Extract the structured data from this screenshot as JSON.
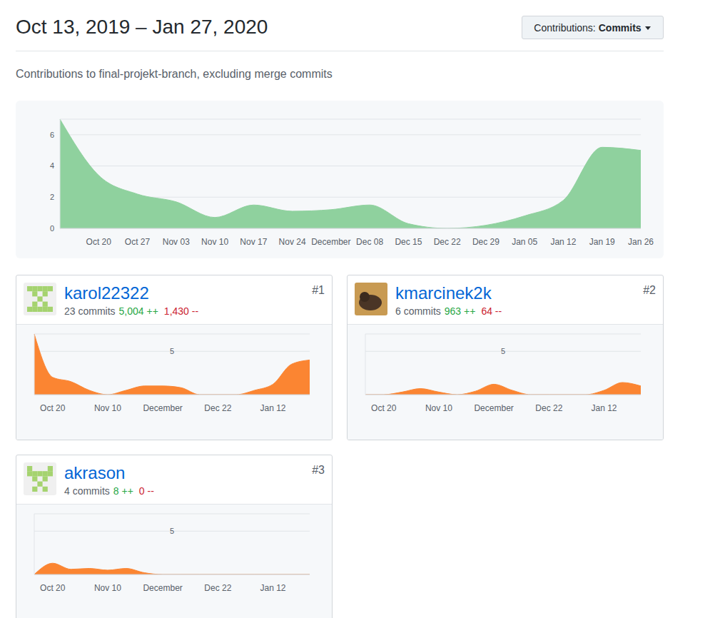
{
  "page": {
    "title": "Oct 13, 2019 – Jan 27, 2020",
    "menu_label": "Contributions:",
    "menu_value": "Commits",
    "subtitle": "Contributions to final-projekt-branch, excluding merge commits"
  },
  "chart_data": [
    {
      "type": "area",
      "categories": [
        null,
        "Oct 20",
        "Oct 27",
        "Nov 03",
        "Nov 10",
        "Nov 17",
        "Nov 24",
        "December",
        "Dec 08",
        "Dec 15",
        "Dec 22",
        "Dec 29",
        "Jan 05",
        "Jan 12",
        "Jan 19",
        "Jan 26"
      ],
      "values": [
        7,
        3.4,
        2.2,
        1.7,
        0.7,
        1.5,
        1.1,
        1.2,
        1.5,
        0.3,
        0,
        0.2,
        0.8,
        1.8,
        5.2,
        5
      ],
      "color": "#8fd19e",
      "ylim": [
        0,
        7
      ],
      "yticks": [
        0,
        2,
        4,
        6
      ],
      "grid": true
    },
    {
      "type": "area",
      "title": "karol22322",
      "rank": "#1",
      "commits": "23 commits",
      "additions": "5,004 ++",
      "deletions": "1,430 --",
      "categories": [
        null,
        "Oct 20",
        null,
        null,
        "Nov 10",
        null,
        null,
        "December",
        null,
        null,
        "Dec 22",
        null,
        null,
        "Jan 12",
        null,
        null
      ],
      "values": [
        7,
        2,
        1.5,
        0.5,
        0,
        0.5,
        1,
        1,
        0.8,
        0,
        0,
        0,
        0.5,
        1.2,
        3.5,
        4
      ],
      "color": "#fb8532",
      "ylim": [
        0,
        7
      ],
      "yticks": [
        5
      ],
      "grid": true
    },
    {
      "type": "area",
      "title": "kmarcinek2k",
      "rank": "#2",
      "commits": "6 commits",
      "additions": "963 ++",
      "deletions": "64 --",
      "categories": [
        null,
        "Oct 20",
        null,
        null,
        "Nov 10",
        null,
        null,
        "December",
        null,
        null,
        "Dec 22",
        null,
        null,
        "Jan 12",
        null,
        null
      ],
      "values": [
        0,
        0,
        0.3,
        0.7,
        0.3,
        0,
        0.4,
        1.2,
        0.5,
        0,
        0,
        0,
        0,
        0.5,
        1.4,
        1
      ],
      "color": "#fb8532",
      "ylim": [
        0,
        7
      ],
      "yticks": [
        5
      ],
      "grid": true
    },
    {
      "type": "area",
      "title": "akrason",
      "rank": "#3",
      "commits": "4 commits",
      "additions": "8 ++",
      "deletions": "0 --",
      "categories": [
        null,
        "Oct 20",
        null,
        null,
        "Nov 10",
        null,
        null,
        "December",
        null,
        null,
        "Dec 22",
        null,
        null,
        "Jan 12",
        null,
        null
      ],
      "values": [
        0,
        1.3,
        0.6,
        0.7,
        0.5,
        0.7,
        0.2,
        0,
        0,
        0,
        0,
        0,
        0,
        0,
        0,
        0
      ],
      "color": "#fb8532",
      "ylim": [
        0,
        7
      ],
      "yticks": [
        5
      ],
      "grid": true
    }
  ]
}
